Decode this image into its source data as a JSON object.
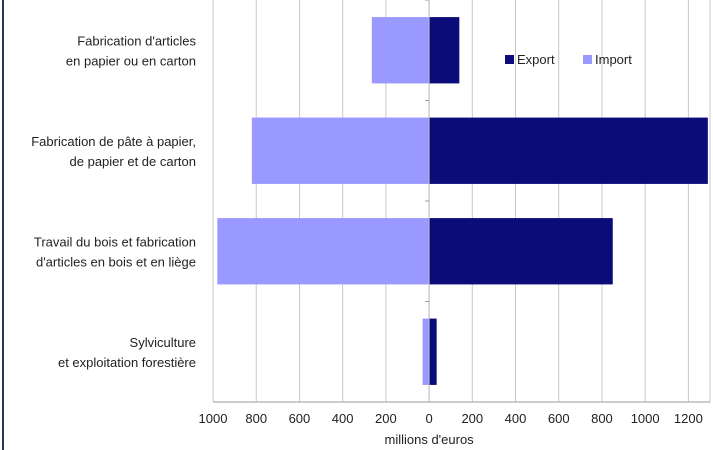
{
  "chart_data": {
    "type": "bar",
    "orientation": "horizontal",
    "categories": [
      [
        "Fabrication d'articles",
        "en papier ou en carton"
      ],
      [
        "Fabrication de pâte à papier,",
        "de papier et de carton"
      ],
      [
        "Travail du bois et fabrication",
        "d'articles en bois et en liège"
      ],
      [
        "Sylviculture",
        "et exploitation forestière"
      ]
    ],
    "series": [
      {
        "name": "Export",
        "color": "#0b0b7a",
        "values": [
          140,
          1290,
          850,
          35
        ]
      },
      {
        "name": "Import",
        "color": "#9999ff",
        "values": [
          -265,
          -820,
          -980,
          -30
        ]
      }
    ],
    "xlim": [
      -1000,
      1300
    ],
    "xticks": [
      -1000,
      -800,
      -600,
      -400,
      -200,
      0,
      200,
      400,
      600,
      800,
      1000,
      1200
    ],
    "xtick_labels": [
      "1000",
      "800",
      "600",
      "400",
      "200",
      "0",
      "200",
      "400",
      "600",
      "800",
      "1000",
      "1200"
    ],
    "xlabel": "millions d'euros",
    "grid": true,
    "legend_position": "top-right"
  }
}
